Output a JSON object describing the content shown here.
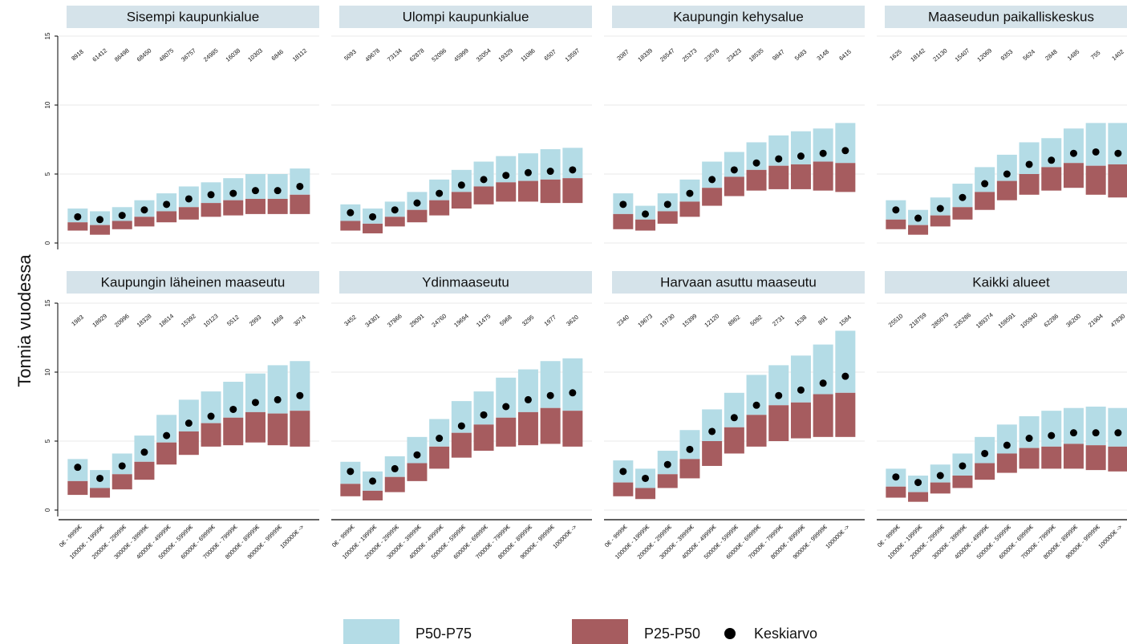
{
  "chart_data": {
    "type": "floating-bar",
    "ylabel": "Tonnia vuodessa",
    "categories": [
      "0€ - 9999€",
      "10000€ - 19999€",
      "20000€ - 29999€",
      "30000€ - 39999€",
      "40000€ - 49999€",
      "50000€ - 59999€",
      "60000€ - 69999€",
      "70000€ - 79999€",
      "80000€ - 89999€",
      "90000€ - 99999€",
      "100000€ ->"
    ],
    "ylim": [
      0,
      15
    ],
    "yticks": [
      0,
      5,
      10,
      15
    ],
    "grid": true,
    "legend": [
      {
        "name": "P50-P75",
        "color": "#b4dce6"
      },
      {
        "name": "P25-P50",
        "color": "#a65c5f"
      },
      {
        "name": "Keskiarvo",
        "color": "#000000"
      }
    ],
    "panels": [
      {
        "title": "Sisempi kaupunkialue",
        "counts": [
          8918,
          61412,
          86498,
          68450,
          48075,
          36757,
          24985,
          16038,
          10303,
          6846,
          18112
        ],
        "p25": [
          0.9,
          0.6,
          1.0,
          1.2,
          1.5,
          1.7,
          1.9,
          2.0,
          2.1,
          2.1,
          2.1
        ],
        "p50": [
          1.5,
          1.3,
          1.6,
          1.9,
          2.3,
          2.6,
          2.9,
          3.1,
          3.2,
          3.2,
          3.5
        ],
        "p75": [
          2.5,
          2.3,
          2.6,
          3.1,
          3.6,
          4.1,
          4.4,
          4.7,
          5.0,
          5.0,
          5.4
        ],
        "mean": [
          1.9,
          1.7,
          2.0,
          2.4,
          2.8,
          3.2,
          3.5,
          3.6,
          3.8,
          3.8,
          4.1
        ]
      },
      {
        "title": "Ulompi kaupunkialue",
        "counts": [
          5093,
          49678,
          73134,
          62878,
          52096,
          45999,
          32054,
          19329,
          11086,
          6507,
          13597
        ],
        "p25": [
          0.9,
          0.7,
          1.2,
          1.5,
          2.0,
          2.5,
          2.8,
          3.0,
          3.0,
          2.9,
          2.9
        ],
        "p50": [
          1.6,
          1.4,
          1.9,
          2.4,
          3.1,
          3.7,
          4.1,
          4.4,
          4.5,
          4.6,
          4.7
        ],
        "p75": [
          2.8,
          2.5,
          3.0,
          3.7,
          4.6,
          5.3,
          5.9,
          6.3,
          6.5,
          6.8,
          6.9
        ],
        "mean": [
          2.2,
          1.9,
          2.4,
          2.9,
          3.6,
          4.2,
          4.6,
          4.9,
          5.1,
          5.2,
          5.3
        ]
      },
      {
        "title": "Kaupungin kehysalue",
        "counts": [
          2087,
          18339,
          26547,
          25373,
          23578,
          23423,
          18535,
          9847,
          5483,
          3148,
          6415
        ],
        "p25": [
          1.0,
          0.9,
          1.4,
          1.9,
          2.7,
          3.4,
          3.8,
          3.9,
          3.9,
          3.8,
          3.7
        ],
        "p50": [
          2.1,
          1.7,
          2.3,
          3.0,
          4.0,
          4.8,
          5.3,
          5.6,
          5.7,
          5.9,
          5.8
        ],
        "p75": [
          3.6,
          2.7,
          3.6,
          4.6,
          5.9,
          6.6,
          7.3,
          7.8,
          8.1,
          8.3,
          8.7
        ],
        "mean": [
          2.8,
          2.1,
          2.8,
          3.6,
          4.6,
          5.3,
          5.8,
          6.1,
          6.3,
          6.5,
          6.7
        ]
      },
      {
        "title": "Maaseudun paikalliskeskus",
        "counts": [
          1625,
          18142,
          21130,
          15407,
          12069,
          9353,
          5624,
          2848,
          1485,
          755,
          1402
        ],
        "p25": [
          1.0,
          0.6,
          1.2,
          1.7,
          2.4,
          3.1,
          3.5,
          3.8,
          4.0,
          3.5,
          3.3
        ],
        "p50": [
          1.7,
          1.3,
          2.0,
          2.6,
          3.7,
          4.5,
          5.0,
          5.5,
          5.8,
          5.6,
          5.7
        ],
        "p75": [
          3.1,
          2.4,
          3.3,
          4.3,
          5.5,
          6.4,
          7.3,
          7.6,
          8.3,
          8.7,
          8.7
        ],
        "mean": [
          2.4,
          1.8,
          2.5,
          3.3,
          4.3,
          5.0,
          5.7,
          6.0,
          6.5,
          6.6,
          6.5
        ]
      },
      {
        "title": "Kaupungin läheinen maaseutu",
        "counts": [
          1983,
          18929,
          20996,
          18328,
          18614,
          15392,
          10123,
          5512,
          2993,
          1668,
          3074
        ],
        "p25": [
          1.1,
          0.9,
          1.5,
          2.2,
          3.3,
          4.0,
          4.6,
          4.7,
          4.9,
          4.7,
          4.6
        ],
        "p50": [
          2.1,
          1.6,
          2.6,
          3.5,
          4.9,
          5.7,
          6.3,
          6.7,
          7.1,
          7.0,
          7.2
        ],
        "p75": [
          3.7,
          2.9,
          4.1,
          5.4,
          6.9,
          8.0,
          8.6,
          9.3,
          9.9,
          10.5,
          10.8
        ],
        "mean": [
          3.1,
          2.3,
          3.2,
          4.2,
          5.4,
          6.3,
          6.8,
          7.3,
          7.8,
          8.0,
          8.3
        ]
      },
      {
        "title": "Ydinmaaseutu",
        "counts": [
          3452,
          34301,
          37866,
          29091,
          24760,
          19694,
          11475,
          5968,
          3295,
          1977,
          3620
        ],
        "p25": [
          1.0,
          0.7,
          1.3,
          2.1,
          3.0,
          3.8,
          4.3,
          4.6,
          4.7,
          4.8,
          4.6
        ],
        "p50": [
          1.9,
          1.4,
          2.4,
          3.4,
          4.6,
          5.6,
          6.2,
          6.7,
          7.1,
          7.4,
          7.2
        ],
        "p75": [
          3.5,
          2.8,
          3.9,
          5.3,
          6.6,
          7.9,
          8.6,
          9.6,
          10.2,
          10.8,
          11.0
        ],
        "mean": [
          2.8,
          2.1,
          3.0,
          4.0,
          5.2,
          6.1,
          6.9,
          7.5,
          8.0,
          8.3,
          8.5
        ]
      },
      {
        "title": "Harvaan asuttu maaseutu",
        "counts": [
          2340,
          19673,
          19730,
          15399,
          12120,
          8962,
          5092,
          2731,
          1538,
          891,
          1584
        ],
        "p25": [
          1.0,
          0.8,
          1.6,
          2.3,
          3.2,
          4.1,
          4.6,
          5.0,
          5.2,
          5.3,
          5.3
        ],
        "p50": [
          2.0,
          1.6,
          2.6,
          3.7,
          5.0,
          6.0,
          6.9,
          7.6,
          7.8,
          8.4,
          8.5
        ],
        "p75": [
          3.6,
          3.0,
          4.3,
          5.8,
          7.3,
          8.5,
          9.8,
          10.5,
          11.2,
          12.0,
          13.0
        ],
        "mean": [
          2.8,
          2.3,
          3.3,
          4.4,
          5.7,
          6.7,
          7.6,
          8.3,
          8.7,
          9.2,
          9.7
        ]
      },
      {
        "title": "Kaikki alueet",
        "counts": [
          25510,
          218759,
          285679,
          235286,
          189374,
          159591,
          105940,
          62286,
          36200,
          21904,
          47830
        ],
        "p25": [
          0.9,
          0.6,
          1.2,
          1.6,
          2.2,
          2.7,
          3.0,
          3.0,
          3.0,
          2.9,
          2.8
        ],
        "p50": [
          1.7,
          1.3,
          2.0,
          2.5,
          3.4,
          4.1,
          4.5,
          4.6,
          4.8,
          4.7,
          4.6
        ],
        "p75": [
          3.0,
          2.5,
          3.3,
          4.1,
          5.3,
          6.2,
          6.8,
          7.2,
          7.4,
          7.5,
          7.4
        ],
        "mean": [
          2.4,
          2.0,
          2.5,
          3.2,
          4.1,
          4.7,
          5.2,
          5.4,
          5.6,
          5.6,
          5.6
        ]
      }
    ]
  }
}
